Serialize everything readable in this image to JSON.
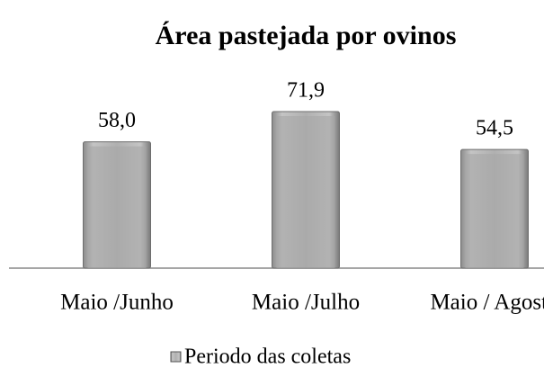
{
  "chart_data": {
    "type": "bar",
    "title": "Área pastejada por ovinos",
    "categories": [
      "Maio /Junho",
      "Maio /Julho",
      "Maio / Agosto"
    ],
    "series": [
      {
        "name": "Periodo das coletas",
        "color": "#a6a6a6",
        "values": [
          58.0,
          71.9,
          54.5
        ],
        "value_labels": [
          "58,0",
          "71,9",
          "54,5"
        ]
      }
    ],
    "legend": "bottom"
  }
}
